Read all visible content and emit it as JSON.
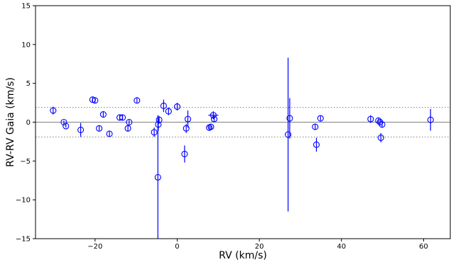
{
  "chart_data": {
    "type": "scatter",
    "xlabel": "RV (km/s)",
    "ylabel": "RV-RV Gaia (km/s)",
    "xlim": [
      -34.5,
      66.5
    ],
    "ylim": [
      -15,
      15
    ],
    "xticks": [
      -20,
      0,
      20,
      40,
      60
    ],
    "yticks": [
      -15,
      -10,
      -5,
      0,
      5,
      10,
      15
    ],
    "xtick_labels": [
      "−20",
      "0",
      "20",
      "40",
      "60"
    ],
    "ytick_labels": [
      "−15",
      "−10",
      "−5",
      "0",
      "5",
      "10",
      "15"
    ],
    "reference_lines": [
      {
        "y": 0,
        "style": "solid",
        "color": "#7f7f7f"
      },
      {
        "y": 1.9,
        "style": "dotted",
        "color": "#7f7f7f"
      },
      {
        "y": -1.9,
        "style": "dotted",
        "color": "#7f7f7f"
      }
    ],
    "marker_color": "#0000ff",
    "grid": false,
    "points": [
      {
        "x": -30.2,
        "y": 1.5,
        "yerr": 0.5,
        "xerr": 0
      },
      {
        "x": -27.6,
        "y": 0.0,
        "yerr": 0.2,
        "xerr": 0
      },
      {
        "x": -27.1,
        "y": -0.5,
        "yerr": 0.2,
        "xerr": 0
      },
      {
        "x": -23.5,
        "y": -1.0,
        "yerr": 0.9,
        "xerr": 0
      },
      {
        "x": -20.6,
        "y": 2.9,
        "yerr": 0.3,
        "xerr": 0
      },
      {
        "x": -20.0,
        "y": 2.8,
        "yerr": 0.3,
        "xerr": 0
      },
      {
        "x": -19.0,
        "y": -0.8,
        "yerr": 0.3,
        "xerr": 0
      },
      {
        "x": -18.0,
        "y": 1.0,
        "yerr": 0.4,
        "xerr": 0
      },
      {
        "x": -16.5,
        "y": -1.5,
        "yerr": 0.3,
        "xerr": 0
      },
      {
        "x": -14.0,
        "y": 0.6,
        "yerr": 0.3,
        "xerr": 0
      },
      {
        "x": -13.3,
        "y": 0.6,
        "yerr": 0.3,
        "xerr": 0
      },
      {
        "x": -12.0,
        "y": -0.8,
        "yerr": 0.4,
        "xerr": 0
      },
      {
        "x": -11.7,
        "y": 0.0,
        "yerr": 0.3,
        "xerr": 0
      },
      {
        "x": -9.8,
        "y": 2.8,
        "yerr": 0.3,
        "xerr": 0
      },
      {
        "x": -5.6,
        "y": -1.3,
        "yerr": 0.6,
        "xerr": 0
      },
      {
        "x": -4.7,
        "y": -7.1,
        "yerr": 8.0,
        "xerr": 0
      },
      {
        "x": -4.6,
        "y": -0.3,
        "yerr": 0.8,
        "xerr": 0
      },
      {
        "x": -4.4,
        "y": 0.3,
        "yerr": 0.5,
        "xerr": 0
      },
      {
        "x": -3.3,
        "y": 2.1,
        "yerr": 0.8,
        "xerr": 0
      },
      {
        "x": -2.1,
        "y": 1.4,
        "yerr": 0.5,
        "xerr": 0
      },
      {
        "x": 0.0,
        "y": 2.0,
        "yerr": 0.5,
        "xerr": 0
      },
      {
        "x": 1.8,
        "y": -4.1,
        "yerr": 1.1,
        "xerr": 0
      },
      {
        "x": 2.2,
        "y": -0.8,
        "yerr": 0.6,
        "xerr": 0
      },
      {
        "x": 2.6,
        "y": 0.4,
        "yerr": 1.1,
        "xerr": 0
      },
      {
        "x": 7.8,
        "y": -0.7,
        "yerr": 0.3,
        "xerr": 0
      },
      {
        "x": 8.2,
        "y": -0.6,
        "yerr": 0.3,
        "xerr": 0
      },
      {
        "x": 8.8,
        "y": 0.9,
        "yerr": 0.5,
        "xerr": 1.2
      },
      {
        "x": 9.0,
        "y": 0.4,
        "yerr": 0.4,
        "xerr": 0
      },
      {
        "x": 27.0,
        "y": -1.6,
        "yerr": 9.9,
        "xerr": 0
      },
      {
        "x": 27.4,
        "y": 0.5,
        "yerr": 2.6,
        "xerr": 0
      },
      {
        "x": 33.6,
        "y": -0.6,
        "yerr": 0.4,
        "xerr": 0
      },
      {
        "x": 33.9,
        "y": -2.9,
        "yerr": 0.9,
        "xerr": 0
      },
      {
        "x": 34.9,
        "y": 0.5,
        "yerr": 0.3,
        "xerr": 0
      },
      {
        "x": 47.1,
        "y": 0.4,
        "yerr": 0.5,
        "xerr": 0
      },
      {
        "x": 49.0,
        "y": 0.2,
        "yerr": 0.3,
        "xerr": 0
      },
      {
        "x": 49.4,
        "y": 0.0,
        "yerr": 0.3,
        "xerr": 0
      },
      {
        "x": 49.6,
        "y": -2.0,
        "yerr": 0.6,
        "xerr": 0
      },
      {
        "x": 49.9,
        "y": -0.3,
        "yerr": 0.4,
        "xerr": 0
      },
      {
        "x": 61.7,
        "y": 0.3,
        "yerr": 1.4,
        "xerr": 0
      }
    ]
  }
}
